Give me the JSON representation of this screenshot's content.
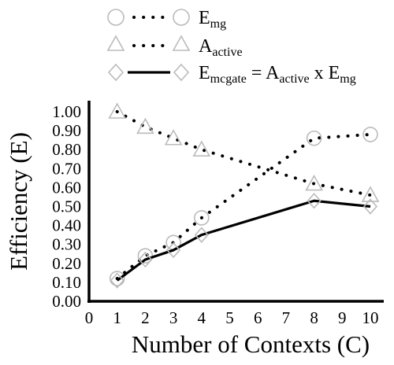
{
  "chart_data": {
    "type": "line",
    "xlabel": "Number of Contexts (C)",
    "ylabel": "Efficiency (E)",
    "xlim": [
      0,
      10
    ],
    "ylim": [
      0,
      1.0
    ],
    "x_ticks": [
      "0",
      "1",
      "2",
      "3",
      "4",
      "5",
      "6",
      "7",
      "8",
      "9",
      "10"
    ],
    "y_ticks": [
      "0.00",
      "0.10",
      "0.20",
      "0.30",
      "0.40",
      "0.50",
      "0.60",
      "0.70",
      "0.80",
      "0.90",
      "1.00"
    ],
    "grid": false,
    "legend_position": "top",
    "legend": [
      {
        "main": "E",
        "sub": "mg"
      },
      {
        "main": "A",
        "sub": "active"
      },
      {
        "main": "E",
        "sub": "mcgate",
        "eq1": " = A",
        "eq1_sub": "active",
        "eq2": " x E",
        "eq2_sub": "mg"
      }
    ],
    "series": [
      {
        "marker": "circle",
        "line": "dotted",
        "x": [
          1,
          2,
          3,
          4,
          8,
          10
        ],
        "y": [
          0.12,
          0.24,
          0.31,
          0.44,
          0.86,
          0.88
        ]
      },
      {
        "marker": "triangle",
        "line": "dotted",
        "x": [
          1,
          2,
          3,
          4,
          8,
          10
        ],
        "y": [
          1.0,
          0.92,
          0.86,
          0.8,
          0.62,
          0.56
        ]
      },
      {
        "marker": "diamond",
        "line": "solid",
        "x": [
          1,
          2,
          3,
          4,
          8,
          10
        ],
        "y": [
          0.11,
          0.22,
          0.27,
          0.35,
          0.53,
          0.5
        ]
      }
    ],
    "colors": {
      "line": "#000000",
      "marker": "#bbbbbb"
    }
  }
}
